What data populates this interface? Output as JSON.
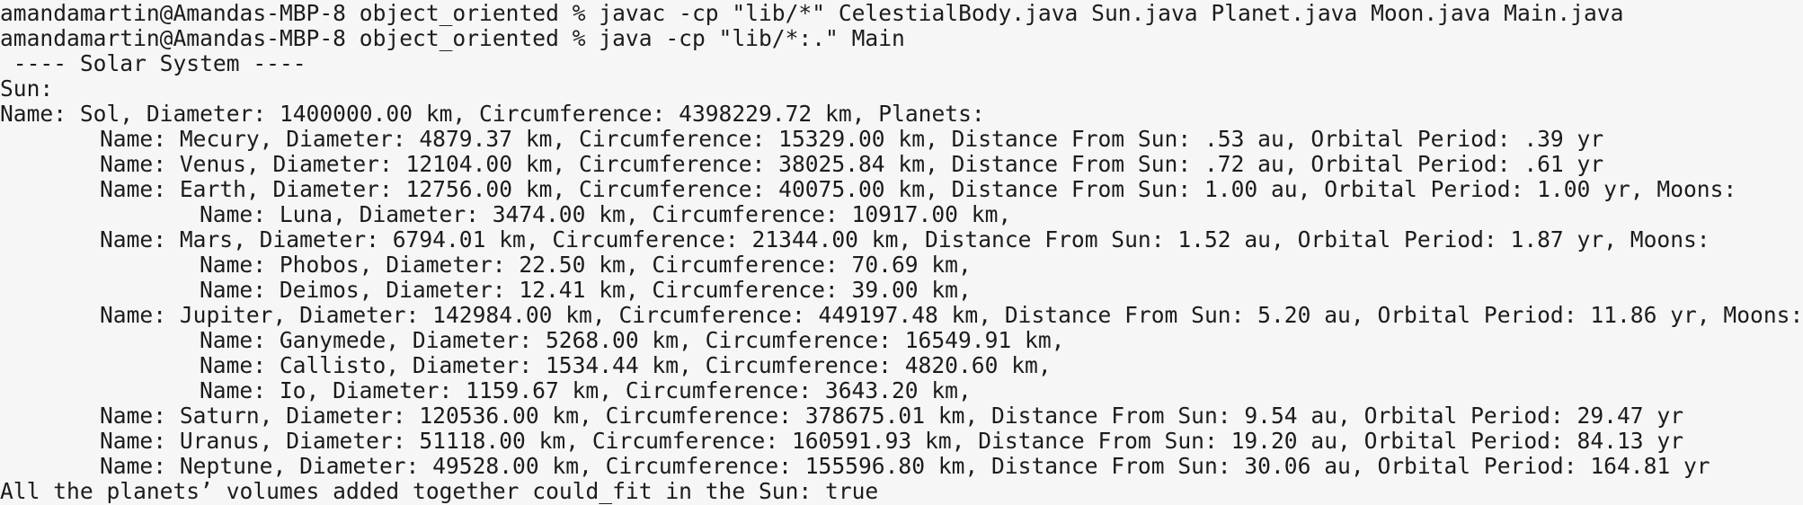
{
  "terminal": {
    "lines": [
      "amandamartin@Amandas-MBP-8 object_oriented % javac -cp \"lib/*\" CelestialBody.java Sun.java Planet.java Moon.java Main.java",
      "amandamartin@Amandas-MBP-8 object_oriented % java -cp \"lib/*:.\" Main",
      " ---- Solar System ----",
      "Sun:",
      "Name: Sol, Diameter: 1400000.00 km, Circumference: 4398229.72 km, Planets:",
      "\tName: Mecury, Diameter: 4879.37 km, Circumference: 15329.00 km, Distance From Sun: .53 au, Orbital Period: .39 yr",
      "\tName: Venus, Diameter: 12104.00 km, Circumference: 38025.84 km, Distance From Sun: .72 au, Orbital Period: .61 yr",
      "\tName: Earth, Diameter: 12756.00 km, Circumference: 40075.00 km, Distance From Sun: 1.00 au, Orbital Period: 1.00 yr, Moons:",
      "\t\tName: Luna, Diameter: 3474.00 km, Circumference: 10917.00 km,",
      "\tName: Mars, Diameter: 6794.01 km, Circumference: 21344.00 km, Distance From Sun: 1.52 au, Orbital Period: 1.87 yr, Moons:",
      "\t\tName: Phobos, Diameter: 22.50 km, Circumference: 70.69 km,",
      "\t\tName: Deimos, Diameter: 12.41 km, Circumference: 39.00 km,",
      "\tName: Jupiter, Diameter: 142984.00 km, Circumference: 449197.48 km, Distance From Sun: 5.20 au, Orbital Period: 11.86 yr, Moons:",
      "\t\tName: Ganymede, Diameter: 5268.00 km, Circumference: 16549.91 km,",
      "\t\tName: Callisto, Diameter: 1534.44 km, Circumference: 4820.60 km,",
      "\t\tName: Io, Diameter: 1159.67 km, Circumference: 3643.20 km,",
      "\tName: Saturn, Diameter: 120536.00 km, Circumference: 378675.01 km, Distance From Sun: 9.54 au, Orbital Period: 29.47 yr",
      "\tName: Uranus, Diameter: 51118.00 km, Circumference: 160591.93 km, Distance From Sun: 19.20 au, Orbital Period: 84.13 yr",
      "\tName: Neptune, Diameter: 49528.00 km, Circumference: 155596.80 km, Distance From Sun: 30.06 au, Orbital Period: 164.81 yr",
      "All the planets’ volumes added together could_fit in the Sun: true"
    ]
  }
}
